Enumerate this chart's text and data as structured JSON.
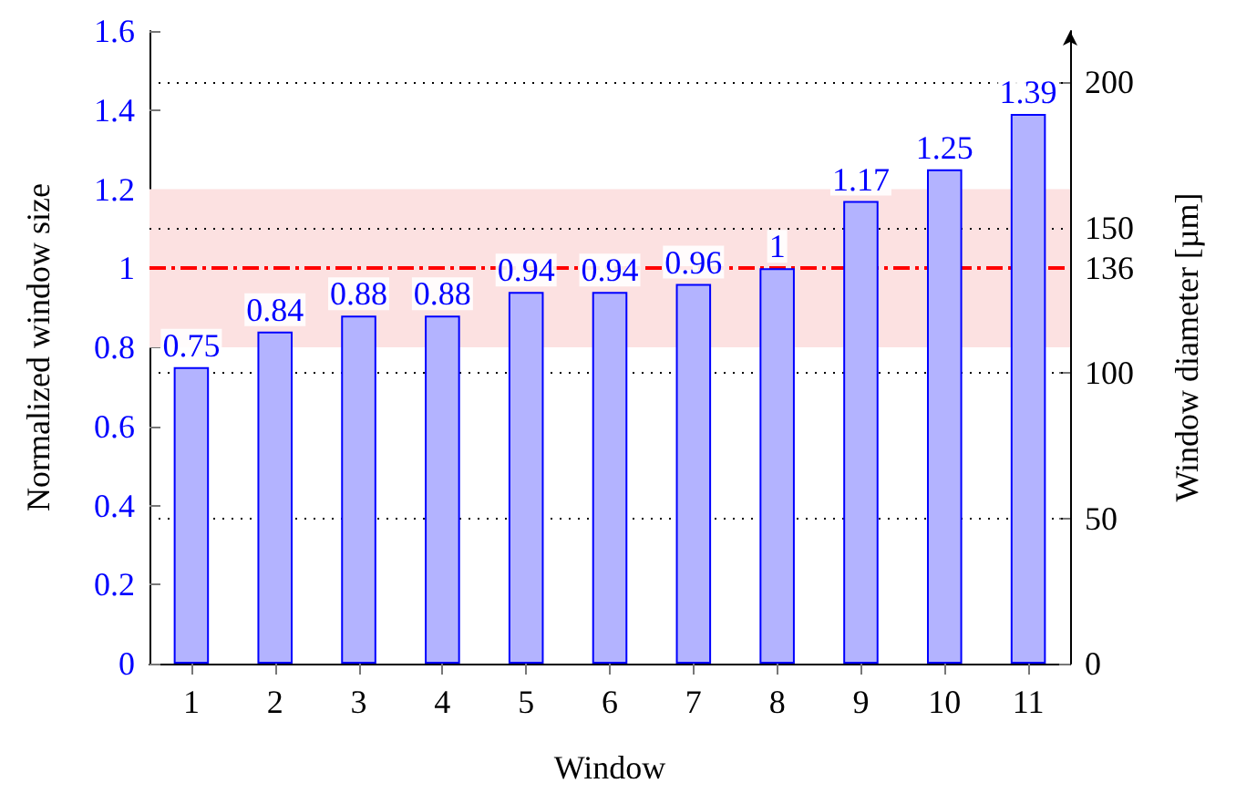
{
  "chart_data": {
    "type": "bar",
    "xlabel": "Window",
    "ylabel": "Normalized window size",
    "y2label": "Window diameter [µm]",
    "categories": [
      "1",
      "2",
      "3",
      "4",
      "5",
      "6",
      "7",
      "8",
      "9",
      "10",
      "11"
    ],
    "series": [
      {
        "color": "#b3b3ff",
        "values": [
          0.75,
          0.84,
          0.88,
          0.88,
          0.94,
          0.94,
          0.96,
          1,
          1.17,
          1.25,
          1.39
        ]
      }
    ],
    "data_labels": true,
    "ylim": [
      0,
      1.6
    ],
    "yticks": [
      0,
      0.2,
      0.4,
      0.6,
      0.8,
      1,
      1.2,
      1.4,
      1.6
    ],
    "y2lim": [
      0,
      217.6
    ],
    "y2ticks": [
      0,
      50,
      100,
      136,
      150,
      200
    ],
    "bands": [
      {
        "axis": "y",
        "from": 0.8,
        "to": 1.2,
        "color": "#fce1e1"
      }
    ],
    "ref_lines": [
      {
        "axis": "y",
        "value": 1,
        "color": "#ff0000",
        "line_style": "dashed"
      },
      {
        "axis": "y2",
        "value": 50,
        "color": "#000000",
        "line_style": "dotted"
      },
      {
        "axis": "y2",
        "value": 100,
        "color": "#000000",
        "line_style": "dotted"
      },
      {
        "axis": "y2",
        "value": 150,
        "color": "#000000",
        "line_style": "dotted"
      },
      {
        "axis": "y2",
        "value": 200,
        "color": "#000000",
        "line_style": "dotted"
      }
    ],
    "grid": false
  }
}
